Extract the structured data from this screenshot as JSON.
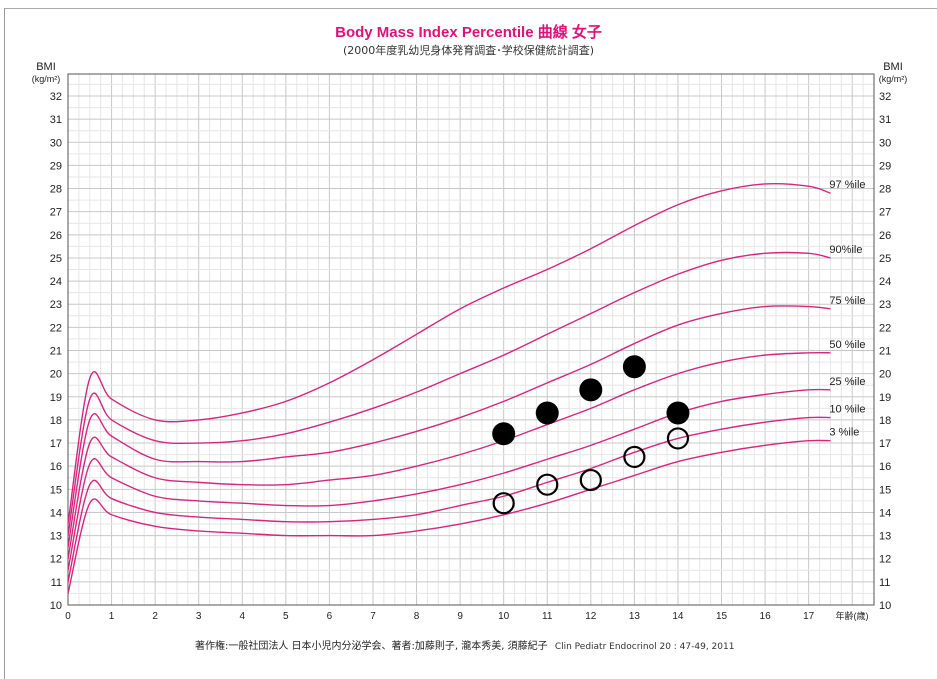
{
  "title": "Body Mass Index Percentile 曲線 女子",
  "subtitle": "(2000年度乳幼児身体発育調査･学校保健統計調査)",
  "footer": {
    "copyright": "著作権:一般社団法人 日本小児内分泌学会、著者:加藤則子, 瀧本秀美, 須藤紀子",
    "citation": "Clin Pediatr Endocrinol 20 : 47-49, 2011"
  },
  "chart_data": {
    "type": "line",
    "title": "Body Mass Index Percentile 曲線 女子",
    "ylabel": "BMI",
    "yunit": "(kg/m²)",
    "xlabel": "年齢(歳)",
    "xlim": [
      0,
      18.5
    ],
    "ylim": [
      10,
      32
    ],
    "xticks": [
      0,
      1,
      2,
      3,
      4,
      5,
      6,
      7,
      8,
      9,
      10,
      11,
      12,
      13,
      14,
      15,
      16,
      17
    ],
    "yticks": [
      10,
      11,
      12,
      13,
      14,
      15,
      16,
      17,
      18,
      19,
      20,
      21,
      22,
      23,
      24,
      25,
      26,
      27,
      28,
      29,
      30,
      31,
      32
    ],
    "grid": true,
    "line_color": "#d4267f",
    "x": [
      0,
      0.5,
      1,
      2,
      3,
      4,
      5,
      6,
      7,
      8,
      9,
      10,
      11,
      12,
      13,
      14,
      15,
      16,
      17,
      17.5
    ],
    "series": [
      {
        "name": "97 %ile",
        "values": [
          13.5,
          19.8,
          18.9,
          18.0,
          18.0,
          18.3,
          18.8,
          19.6,
          20.6,
          21.7,
          22.8,
          23.7,
          24.5,
          25.4,
          26.4,
          27.3,
          27.9,
          28.2,
          28.1,
          27.8
        ]
      },
      {
        "name": "90%ile",
        "values": [
          13.0,
          18.9,
          18.0,
          17.1,
          17.0,
          17.1,
          17.4,
          17.9,
          18.5,
          19.2,
          20.0,
          20.8,
          21.7,
          22.6,
          23.5,
          24.3,
          24.9,
          25.2,
          25.2,
          25.0
        ]
      },
      {
        "name": "75 %ile",
        "values": [
          12.5,
          18.0,
          17.3,
          16.3,
          16.2,
          16.2,
          16.4,
          16.6,
          17.0,
          17.5,
          18.1,
          18.8,
          19.6,
          20.4,
          21.3,
          22.1,
          22.6,
          22.9,
          22.9,
          22.8
        ]
      },
      {
        "name": "50 %ile",
        "values": [
          12.0,
          17.0,
          16.4,
          15.5,
          15.3,
          15.2,
          15.2,
          15.4,
          15.6,
          16.0,
          16.5,
          17.1,
          17.8,
          18.5,
          19.3,
          20.0,
          20.5,
          20.8,
          20.9,
          20.9
        ]
      },
      {
        "name": "25 %ile",
        "values": [
          11.5,
          16.1,
          15.5,
          14.7,
          14.5,
          14.4,
          14.3,
          14.3,
          14.5,
          14.8,
          15.2,
          15.7,
          16.3,
          16.9,
          17.6,
          18.3,
          18.8,
          19.1,
          19.3,
          19.3
        ]
      },
      {
        "name": "10 %ile",
        "values": [
          11.0,
          15.2,
          14.6,
          14.0,
          13.8,
          13.7,
          13.6,
          13.6,
          13.7,
          13.9,
          14.3,
          14.7,
          15.3,
          15.9,
          16.6,
          17.2,
          17.6,
          17.9,
          18.1,
          18.1
        ]
      },
      {
        "name": "3 %ile",
        "values": [
          10.5,
          14.4,
          13.9,
          13.4,
          13.2,
          13.1,
          13.0,
          13.0,
          13.0,
          13.2,
          13.5,
          13.9,
          14.4,
          15.0,
          15.6,
          16.2,
          16.6,
          16.9,
          17.1,
          17.1
        ]
      }
    ],
    "markers": {
      "filled": [
        [
          10,
          17.4
        ],
        [
          11,
          18.3
        ],
        [
          12,
          19.3
        ],
        [
          13,
          20.3
        ],
        [
          14,
          18.3
        ]
      ],
      "open": [
        [
          10,
          14.4
        ],
        [
          11,
          15.2
        ],
        [
          12,
          15.4
        ],
        [
          13,
          16.4
        ],
        [
          14,
          17.2
        ]
      ]
    }
  }
}
